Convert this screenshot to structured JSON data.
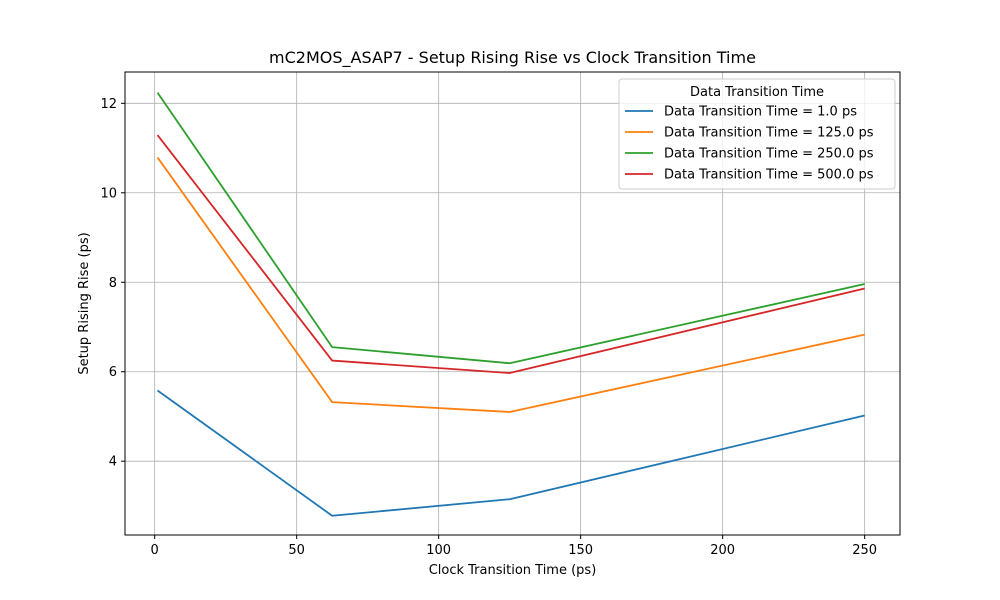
{
  "chart_data": {
    "type": "line",
    "title": "mC2MOS_ASAP7 - Setup Rising Rise vs Clock Transition Time",
    "xlabel": "Clock Transition Time (ps)",
    "ylabel": "Setup Rising Rise (ps)",
    "xlim": [
      -10.45,
      262.45
    ],
    "ylim": [
      2.35,
      12.7
    ],
    "xticks": [
      0,
      50,
      100,
      150,
      200,
      250
    ],
    "yticks": [
      4,
      6,
      8,
      10,
      12
    ],
    "xtick_labels": [
      "0",
      "50",
      "100",
      "150",
      "200",
      "250"
    ],
    "ytick_labels": [
      "4",
      "6",
      "8",
      "10",
      "12"
    ],
    "grid": true,
    "legend": {
      "title": "Data Transition Time",
      "placement": "top-right"
    },
    "x": [
      1,
      62.5,
      125,
      250
    ],
    "series": [
      {
        "name": "Data Transition Time = 1.0 ps",
        "color": "#1f77b4",
        "values": [
          5.58,
          2.78,
          3.15,
          5.02
        ]
      },
      {
        "name": "Data Transition Time = 125.0 ps",
        "color": "#ff7f0e",
        "values": [
          10.79,
          5.32,
          5.1,
          6.83
        ]
      },
      {
        "name": "Data Transition Time = 250.0 ps",
        "color": "#2ca02c",
        "values": [
          12.24,
          6.55,
          6.19,
          7.96
        ]
      },
      {
        "name": "Data Transition Time = 500.0 ps",
        "color": "#d62728",
        "values": [
          11.29,
          6.25,
          5.97,
          7.86
        ]
      }
    ]
  }
}
